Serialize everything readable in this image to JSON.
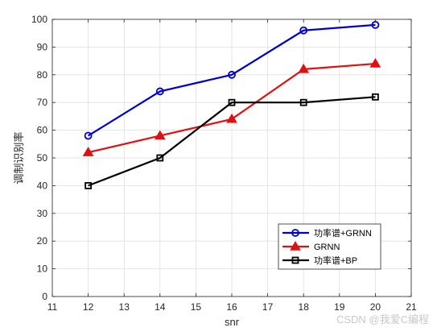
{
  "chart_data": {
    "type": "line",
    "title": "",
    "xlabel": "snr",
    "ylabel": "调制识别率",
    "xlim": [
      11,
      21
    ],
    "ylim": [
      0,
      100
    ],
    "x_ticks": [
      "11",
      "12",
      "13",
      "14",
      "15",
      "16",
      "17",
      "18",
      "19",
      "20",
      "21"
    ],
    "y_ticks": [
      "0",
      "10",
      "20",
      "30",
      "40",
      "50",
      "60",
      "70",
      "80",
      "90",
      "100"
    ],
    "grid": true,
    "legend_position": "bottom-right",
    "series": [
      {
        "name": "功率谱+GRNN",
        "color": "#0000cc",
        "marker": "circle",
        "x": [
          12,
          14,
          16,
          18,
          20
        ],
        "y": [
          58,
          74,
          80,
          96,
          98
        ]
      },
      {
        "name": "GRNN",
        "color": "#e01010",
        "marker": "triangle",
        "x": [
          12,
          14,
          16,
          18,
          20
        ],
        "y": [
          52,
          58,
          64,
          82,
          84
        ]
      },
      {
        "name": "功率谱+BP",
        "color": "#000000",
        "marker": "square",
        "x": [
          12,
          14,
          16,
          18,
          20
        ],
        "y": [
          40,
          50,
          70,
          70,
          72
        ]
      }
    ]
  },
  "watermark": "CSDN @我爱C编程"
}
